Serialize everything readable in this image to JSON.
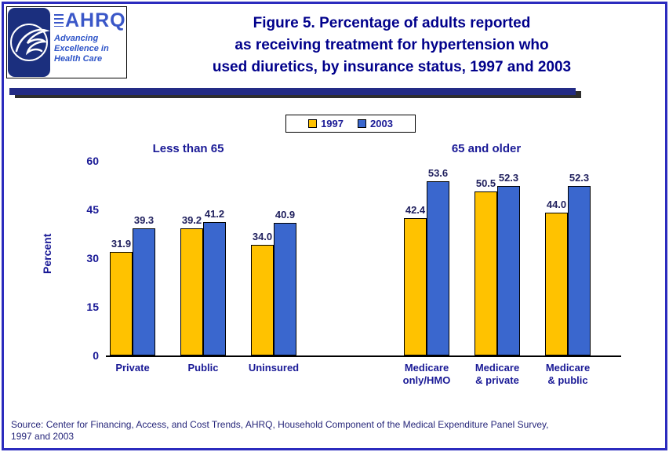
{
  "logo": {
    "ahrq_wordmark": "AHRQ",
    "tagline_line1": "Advancing",
    "tagline_line2": "Excellence in",
    "tagline_line3": "Health Care"
  },
  "header": {
    "title_line1": "Figure 5. Percentage of adults reported",
    "title_line2": "as receiving treatment for hypertension who",
    "title_line3": "used diuretics, by insurance status, 1997 and 2003"
  },
  "chart_data": {
    "type": "bar",
    "title": "Figure 5. Percentage of adults reported as receiving treatment for hypertension who used diuretics, by insurance status, 1997 and 2003",
    "ylabel": "Percent",
    "ylim": [
      0,
      60
    ],
    "yticks": [
      0,
      15,
      30,
      45,
      60
    ],
    "grid": false,
    "legend_position": "top-center",
    "group_headers": [
      "Less than 65",
      "65 and older"
    ],
    "categories": [
      "Private",
      "Public",
      "Uninsured",
      "Medicare only/HMO",
      "Medicare & private",
      "Medicare & public"
    ],
    "category_label_lines": [
      [
        "Private"
      ],
      [
        "Public"
      ],
      [
        "Uninsured"
      ],
      [
        "Medicare",
        "only/HMO"
      ],
      [
        "Medicare",
        "& private"
      ],
      [
        "Medicare",
        "& public"
      ]
    ],
    "series": [
      {
        "name": "1997",
        "color": "#FFC200",
        "values": [
          31.9,
          39.2,
          34.0,
          42.4,
          50.5,
          44.0
        ]
      },
      {
        "name": "2003",
        "color": "#3A67CE",
        "values": [
          39.3,
          41.2,
          40.9,
          53.6,
          52.3,
          52.3
        ]
      }
    ]
  },
  "source": {
    "line1": "Source: Center for Financing, Access, and Cost Trends, AHRQ, Household Component of the Medical Expenditure Panel Survey,",
    "line2": "1997 and 2003"
  }
}
